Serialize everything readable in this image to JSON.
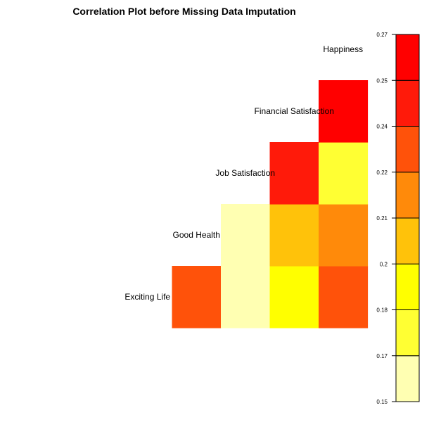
{
  "chart_data": {
    "type": "heatmap",
    "title": "Correlation Plot before Missing Data Imputation",
    "variables": [
      "Exciting Life",
      "Good Health",
      "Job Satisfaction",
      "Financial Satisfaction",
      "Happiness"
    ],
    "cells": [
      {
        "row": "Exciting Life",
        "col": "Good Health",
        "value": 0.225
      },
      {
        "row": "Exciting Life",
        "col": "Job Satisfaction",
        "value": 0.155
      },
      {
        "row": "Exciting Life",
        "col": "Financial Satisfaction",
        "value": 0.19
      },
      {
        "row": "Exciting Life",
        "col": "Happiness",
        "value": 0.225
      },
      {
        "row": "Good Health",
        "col": "Job Satisfaction",
        "value": 0.155
      },
      {
        "row": "Good Health",
        "col": "Financial Satisfaction",
        "value": 0.205
      },
      {
        "row": "Good Health",
        "col": "Happiness",
        "value": 0.215
      },
      {
        "row": "Job Satisfaction",
        "col": "Financial Satisfaction",
        "value": 0.245
      },
      {
        "row": "Job Satisfaction",
        "col": "Happiness",
        "value": 0.175
      },
      {
        "row": "Financial Satisfaction",
        "col": "Happiness",
        "value": 0.26
      }
    ],
    "legend": {
      "breaks": [
        0.15,
        0.17,
        0.18,
        0.2,
        0.21,
        0.22,
        0.24,
        0.25,
        0.27
      ],
      "colors": [
        "#FFFFB2",
        "#FFFF33",
        "#FFFF00",
        "#FFC20A",
        "#FF8A0A",
        "#FF520A",
        "#FF1A0A",
        "#FF0000"
      ]
    }
  }
}
